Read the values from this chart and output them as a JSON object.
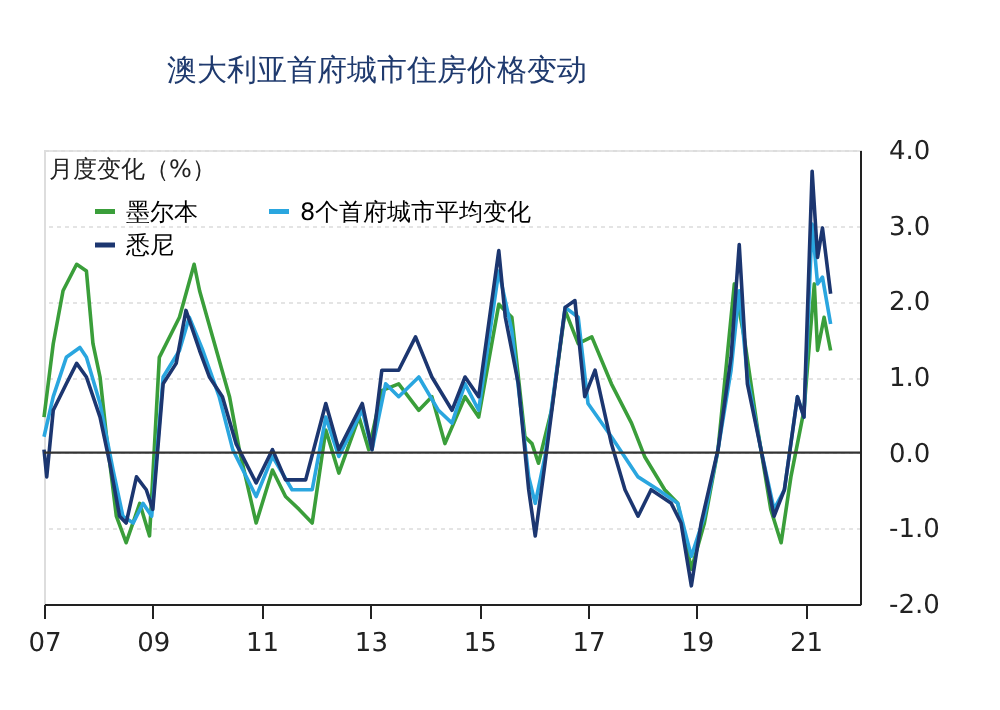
{
  "chart_data": {
    "type": "line",
    "title": "澳大利亚首府城市住房价格变动",
    "ylabel": "月度变化（%）",
    "xlim": [
      2007,
      2022
    ],
    "xticks": [
      {
        "value": 2007,
        "label": "07"
      },
      {
        "value": 2009,
        "label": "09"
      },
      {
        "value": 2011,
        "label": "11"
      },
      {
        "value": 2013,
        "label": "13"
      },
      {
        "value": 2015,
        "label": "15"
      },
      {
        "value": 2017,
        "label": "17"
      },
      {
        "value": 2019,
        "label": "19"
      },
      {
        "value": 2021,
        "label": "21"
      }
    ],
    "ylim": [
      -2.0,
      4.0
    ],
    "yticks": [
      {
        "value": -2,
        "label": "-2.0"
      },
      {
        "value": -1,
        "label": "-1.0"
      },
      {
        "value": 0,
        "label": "0.0"
      },
      {
        "value": 1,
        "label": "1.0"
      },
      {
        "value": 2,
        "label": "2.0"
      },
      {
        "value": 3,
        "label": "3.0"
      },
      {
        "value": 4,
        "label": "4.0"
      }
    ],
    "grid": "y",
    "legend": "top left",
    "marker": "none",
    "line_style": "solid",
    "ref_lines": [
      {
        "axis": "y",
        "value": 0,
        "color": "#333333"
      }
    ],
    "series": [
      {
        "name": "墨尔本",
        "color": "#3a9e3a",
        "x": [
          2007.0,
          2007.17,
          2007.35,
          2007.6,
          2007.78,
          2007.9,
          2008.03,
          2008.15,
          2008.33,
          2008.51,
          2008.76,
          2008.94,
          2009.12,
          2009.49,
          2009.76,
          2009.86,
          2010.1,
          2010.41,
          2010.59,
          2010.9,
          2011.2,
          2011.44,
          2011.69,
          2011.93,
          2012.18,
          2012.42,
          2012.79,
          2012.97,
          2013.21,
          2013.52,
          2013.89,
          2014.13,
          2014.37,
          2014.74,
          2014.99,
          2015.36,
          2015.6,
          2015.84,
          2015.97,
          2016.09,
          2016.33,
          2016.58,
          2016.82,
          2017.07,
          2017.43,
          2017.8,
          2018.04,
          2018.41,
          2018.65,
          2018.9,
          2019.14,
          2019.39,
          2019.69,
          2019.87,
          2020.12,
          2020.36,
          2020.55,
          2020.73,
          2020.97,
          2021.16,
          2021.22,
          2021.34,
          2021.46
        ],
        "values": [
          0.47,
          1.44,
          2.14,
          2.49,
          2.4,
          1.44,
          1.0,
          0.21,
          -0.84,
          -1.19,
          -0.67,
          -1.1,
          1.26,
          1.79,
          2.49,
          2.14,
          1.53,
          0.74,
          0.04,
          -0.93,
          -0.23,
          -0.58,
          -0.75,
          -0.93,
          0.3,
          -0.27,
          0.47,
          0.04,
          0.82,
          0.91,
          0.56,
          0.74,
          0.12,
          0.74,
          0.47,
          1.96,
          1.79,
          0.21,
          0.12,
          -0.14,
          0.56,
          1.88,
          1.44,
          1.53,
          0.91,
          0.39,
          -0.05,
          -0.49,
          -0.67,
          -1.54,
          -0.93,
          0.04,
          2.23,
          1.53,
          0.3,
          -0.75,
          -1.19,
          -0.32,
          0.56,
          2.23,
          1.35,
          1.79,
          1.35
        ]
      },
      {
        "name": "8个首府城市平均变化",
        "color": "#2aa6df",
        "x": [
          2007.0,
          2007.17,
          2007.41,
          2007.66,
          2007.78,
          2008.03,
          2008.27,
          2008.45,
          2008.64,
          2008.82,
          2008.98,
          2009.19,
          2009.49,
          2009.67,
          2009.92,
          2010.22,
          2010.47,
          2010.9,
          2011.2,
          2011.56,
          2011.93,
          2012.18,
          2012.42,
          2012.85,
          2013.03,
          2013.28,
          2013.52,
          2013.89,
          2014.25,
          2014.5,
          2014.74,
          2014.99,
          2015.36,
          2015.6,
          2015.91,
          2016.03,
          2016.21,
          2016.58,
          2016.82,
          2017.0,
          2017.43,
          2017.92,
          2018.29,
          2018.65,
          2018.9,
          2019.14,
          2019.39,
          2019.63,
          2019.78,
          2019.93,
          2020.18,
          2020.42,
          2020.61,
          2020.85,
          2020.97,
          2021.12,
          2021.22,
          2021.31,
          2021.46
        ],
        "values": [
          0.21,
          0.74,
          1.26,
          1.39,
          1.26,
          0.65,
          -0.23,
          -0.84,
          -0.93,
          -0.67,
          -0.84,
          1.0,
          1.35,
          1.79,
          1.35,
          0.74,
          0.04,
          -0.58,
          -0.05,
          -0.49,
          -0.49,
          0.47,
          -0.05,
          0.56,
          0.04,
          0.91,
          0.74,
          1.0,
          0.56,
          0.39,
          0.91,
          0.56,
          2.4,
          1.61,
          -0.32,
          -0.67,
          -0.05,
          1.92,
          1.79,
          0.65,
          0.21,
          -0.32,
          -0.49,
          -0.67,
          -1.37,
          -0.84,
          0.04,
          1.09,
          2.14,
          1.0,
          0.04,
          -0.75,
          -0.49,
          0.74,
          0.47,
          3.02,
          2.23,
          2.32,
          1.7
        ]
      },
      {
        "name": "悉尼",
        "color": "#1c3670",
        "x": [
          2007.0,
          2007.05,
          2007.17,
          2007.41,
          2007.6,
          2007.78,
          2008.03,
          2008.21,
          2008.39,
          2008.51,
          2008.7,
          2008.88,
          2009.0,
          2009.19,
          2009.43,
          2009.61,
          2009.86,
          2010.04,
          2010.28,
          2010.53,
          2010.9,
          2011.2,
          2011.44,
          2011.81,
          2012.18,
          2012.42,
          2012.85,
          2013.03,
          2013.21,
          2013.52,
          2013.83,
          2014.13,
          2014.5,
          2014.74,
          2014.99,
          2015.36,
          2015.48,
          2015.72,
          2015.91,
          2016.03,
          2016.21,
          2016.58,
          2016.76,
          2016.94,
          2017.13,
          2017.43,
          2017.68,
          2017.92,
          2018.16,
          2018.53,
          2018.71,
          2018.9,
          2019.08,
          2019.39,
          2019.63,
          2019.78,
          2019.93,
          2020.18,
          2020.42,
          2020.61,
          2020.85,
          2020.97,
          2021.12,
          2021.22,
          2021.31,
          2021.46
        ],
        "values": [
          0.04,
          -0.32,
          0.56,
          0.91,
          1.18,
          1.0,
          0.47,
          -0.14,
          -0.84,
          -0.93,
          -0.32,
          -0.49,
          -0.75,
          0.91,
          1.18,
          1.88,
          1.35,
          1.0,
          0.74,
          0.12,
          -0.4,
          0.04,
          -0.36,
          -0.36,
          0.65,
          0.04,
          0.65,
          0.04,
          1.09,
          1.09,
          1.53,
          1.0,
          0.56,
          1.0,
          0.74,
          2.67,
          1.79,
          0.91,
          -0.49,
          -1.1,
          -0.14,
          1.92,
          2.01,
          0.74,
          1.09,
          0.12,
          -0.49,
          -0.84,
          -0.49,
          -0.67,
          -0.93,
          -1.76,
          -0.93,
          0.04,
          1.26,
          2.75,
          0.91,
          0.04,
          -0.84,
          -0.49,
          0.74,
          0.47,
          3.72,
          2.58,
          2.97,
          2.1
        ]
      }
    ]
  }
}
